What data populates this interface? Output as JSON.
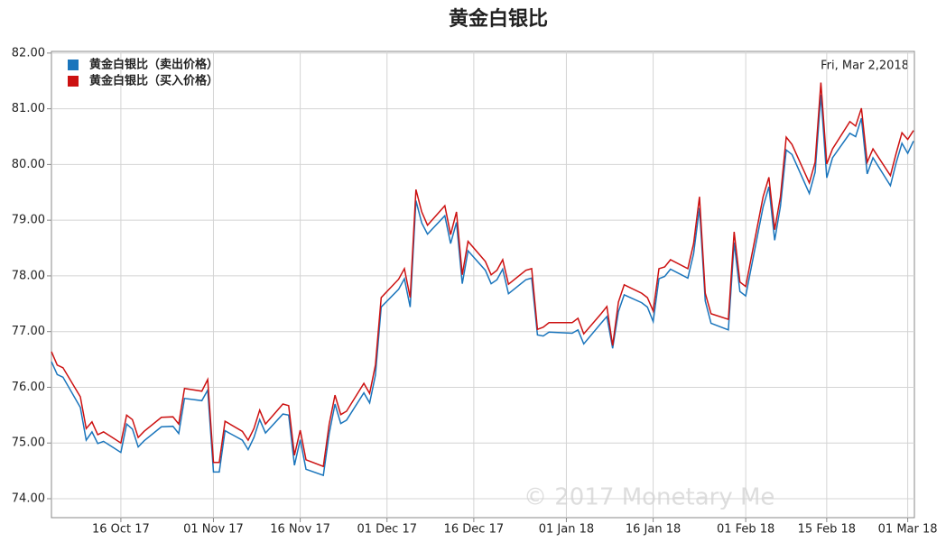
{
  "chart_data": {
    "type": "line",
    "title": "黄金白银比",
    "annotation": "Fri, Mar 2,2018",
    "watermark": "© 2017 Monetary Me",
    "legend_position": "upper left",
    "grid": true,
    "x": [
      "2017-10-04",
      "2017-10-05",
      "2017-10-06",
      "2017-10-09",
      "2017-10-10",
      "2017-10-11",
      "2017-10-12",
      "2017-10-13",
      "2017-10-16",
      "2017-10-17",
      "2017-10-18",
      "2017-10-19",
      "2017-10-20",
      "2017-10-23",
      "2017-10-25",
      "2017-10-26",
      "2017-10-27",
      "2017-10-30",
      "2017-10-31",
      "2017-11-01",
      "2017-11-02",
      "2017-11-03",
      "2017-11-06",
      "2017-11-07",
      "2017-11-08",
      "2017-11-09",
      "2017-11-10",
      "2017-11-13",
      "2017-11-14",
      "2017-11-15",
      "2017-11-16",
      "2017-11-17",
      "2017-11-20",
      "2017-11-21",
      "2017-11-22",
      "2017-11-23",
      "2017-11-24",
      "2017-11-27",
      "2017-11-28",
      "2017-11-29",
      "2017-11-30",
      "2017-12-03",
      "2017-12-04",
      "2017-12-05",
      "2017-12-06",
      "2017-12-07",
      "2017-12-08",
      "2017-12-11",
      "2017-12-12",
      "2017-12-13",
      "2017-12-14",
      "2017-12-15",
      "2017-12-18",
      "2017-12-19",
      "2017-12-20",
      "2017-12-21",
      "2017-12-22",
      "2017-12-25",
      "2017-12-26",
      "2017-12-27",
      "2017-12-28",
      "2017-12-29",
      "2018-01-02",
      "2018-01-03",
      "2018-01-04",
      "2018-01-07",
      "2018-01-08",
      "2018-01-09",
      "2018-01-10",
      "2018-01-11",
      "2018-01-14",
      "2018-01-15",
      "2018-01-16",
      "2018-01-17",
      "2018-01-18",
      "2018-01-19",
      "2018-01-22",
      "2018-01-23",
      "2018-01-24",
      "2018-01-25",
      "2018-01-26",
      "2018-01-29",
      "2018-01-30",
      "2018-01-31",
      "2018-02-01",
      "2018-02-04",
      "2018-02-05",
      "2018-02-06",
      "2018-02-07",
      "2018-02-08",
      "2018-02-09",
      "2018-02-12",
      "2018-02-13",
      "2018-02-14",
      "2018-02-15",
      "2018-02-16",
      "2018-02-19",
      "2018-02-20",
      "2018-02-21",
      "2018-02-22",
      "2018-02-23",
      "2018-02-26",
      "2018-02-27",
      "2018-02-28",
      "2018-03-01",
      "2018-03-02"
    ],
    "series": [
      {
        "name": "黄金白银比（卖出价格）",
        "color": "#1a75bc",
        "values": [
          76.46,
          76.23,
          76.18,
          75.64,
          75.05,
          75.2,
          74.99,
          75.03,
          74.83,
          75.34,
          75.25,
          74.93,
          75.04,
          75.29,
          75.3,
          75.17,
          75.8,
          75.76,
          75.95,
          74.48,
          74.48,
          75.22,
          75.05,
          74.88,
          75.1,
          75.42,
          75.18,
          75.52,
          75.5,
          74.6,
          75.06,
          74.53,
          74.42,
          75.17,
          75.7,
          75.35,
          75.41,
          75.9,
          75.72,
          76.22,
          77.44,
          77.76,
          77.95,
          77.44,
          79.35,
          78.95,
          78.75,
          79.08,
          78.58,
          78.96,
          77.86,
          78.45,
          78.1,
          77.86,
          77.93,
          78.12,
          77.68,
          77.93,
          77.96,
          76.94,
          76.92,
          76.99,
          76.97,
          77.03,
          76.78,
          77.15,
          77.27,
          76.7,
          77.36,
          77.66,
          77.52,
          77.44,
          77.18,
          77.95,
          77.99,
          78.12,
          77.96,
          78.4,
          79.22,
          77.55,
          77.15,
          77.03,
          78.6,
          77.72,
          77.64,
          79.24,
          79.6,
          78.64,
          79.25,
          80.26,
          80.18,
          79.48,
          79.86,
          81.25,
          79.76,
          80.12,
          80.56,
          80.5,
          80.83,
          79.83,
          80.12,
          79.62,
          80.03,
          80.38,
          80.2,
          80.42
        ]
      },
      {
        "name": "黄金白银比（买入价格）",
        "color": "#cc1111",
        "values": [
          76.64,
          76.4,
          76.35,
          75.83,
          75.26,
          75.38,
          75.15,
          75.2,
          75.0,
          75.5,
          75.42,
          75.1,
          75.21,
          75.46,
          75.47,
          75.34,
          75.98,
          75.93,
          76.14,
          74.65,
          74.65,
          75.39,
          75.21,
          75.05,
          75.26,
          75.59,
          75.34,
          75.7,
          75.67,
          74.78,
          75.23,
          74.7,
          74.58,
          75.34,
          75.86,
          75.51,
          75.57,
          76.07,
          75.89,
          76.4,
          77.61,
          77.94,
          78.13,
          77.61,
          79.55,
          79.15,
          78.91,
          79.26,
          78.74,
          79.15,
          78.02,
          78.62,
          78.26,
          78.02,
          78.1,
          78.29,
          77.85,
          78.1,
          78.13,
          77.04,
          77.08,
          77.16,
          77.16,
          77.24,
          76.96,
          77.32,
          77.45,
          76.75,
          77.53,
          77.84,
          77.69,
          77.61,
          77.37,
          78.13,
          78.16,
          78.29,
          78.13,
          78.58,
          79.42,
          77.69,
          77.32,
          77.22,
          78.79,
          77.89,
          77.81,
          79.42,
          79.77,
          78.83,
          79.42,
          80.49,
          80.36,
          79.67,
          80.04,
          81.47,
          80.01,
          80.28,
          80.77,
          80.69,
          81.01,
          80.04,
          80.28,
          79.8,
          80.2,
          80.57,
          80.45,
          80.61
        ]
      }
    ],
    "xlim": [
      "2017-10-04",
      "2018-03-02"
    ],
    "xticks": [
      {
        "value": "2017-10-16",
        "label": "16 Oct 17"
      },
      {
        "value": "2017-11-01",
        "label": "01 Nov 17"
      },
      {
        "value": "2017-11-16",
        "label": "16 Nov 17"
      },
      {
        "value": "2017-12-01",
        "label": "01 Dec 17"
      },
      {
        "value": "2017-12-16",
        "label": "16 Dec 17"
      },
      {
        "value": "2018-01-01",
        "label": "01 Jan 18"
      },
      {
        "value": "2018-01-16",
        "label": "16 Jan 18"
      },
      {
        "value": "2018-02-01",
        "label": "01 Feb 18"
      },
      {
        "value": "2018-02-15",
        "label": "15 Feb 18"
      },
      {
        "value": "2018-03-01",
        "label": "01 Mar 18"
      }
    ],
    "ylim": [
      73.66,
      82.03
    ],
    "yticks": [
      {
        "value": 74,
        "label": "74.00"
      },
      {
        "value": 75,
        "label": "75.00"
      },
      {
        "value": 76,
        "label": "76.00"
      },
      {
        "value": 77,
        "label": "77.00"
      },
      {
        "value": 78,
        "label": "78.00"
      },
      {
        "value": 79,
        "label": "79.00"
      },
      {
        "value": 80,
        "label": "80.00"
      },
      {
        "value": 81,
        "label": "81.00"
      },
      {
        "value": 82,
        "label": "82.00"
      }
    ]
  }
}
